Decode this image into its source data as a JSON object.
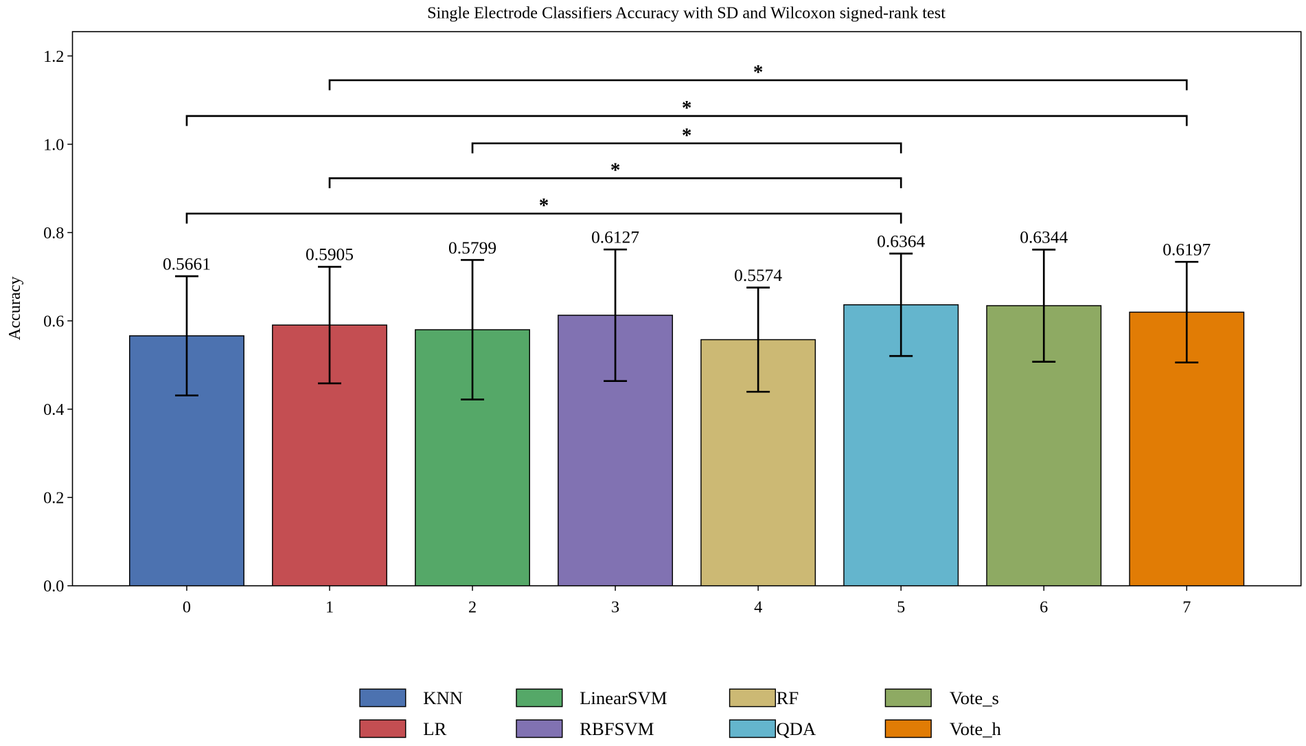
{
  "chart_data": {
    "type": "bar",
    "title": "Single Electrode Classifiers Accuracy with SD and Wilcoxon signed-rank test",
    "xlabel": "",
    "ylabel": "Accuracy",
    "categories": [
      "0",
      "1",
      "2",
      "3",
      "4",
      "5",
      "6",
      "7"
    ],
    "series_names": [
      "KNN",
      "LR",
      "LinearSVM",
      "RBFSVM",
      "RF",
      "QDA",
      "Vote_s",
      "Vote_h"
    ],
    "values": [
      0.5661,
      0.5905,
      0.5799,
      0.6127,
      0.5574,
      0.6364,
      0.6344,
      0.6197
    ],
    "value_labels": [
      "0.5661",
      "0.5905",
      "0.5799",
      "0.6127",
      "0.5574",
      "0.6364",
      "0.6344",
      "0.6197"
    ],
    "sd": [
      0.135,
      0.132,
      0.158,
      0.149,
      0.118,
      0.116,
      0.127,
      0.114
    ],
    "colors": [
      "#4c72b0",
      "#c44e52",
      "#55a868",
      "#8172b2",
      "#ccb974",
      "#64b5cd",
      "#8eaa63",
      "#e17c05"
    ],
    "ylim": [
      0,
      1.255
    ],
    "xlim": [
      -0.8,
      7.8
    ],
    "yticks": [
      0.0,
      0.2,
      0.4,
      0.6,
      0.8,
      1.0,
      1.2
    ],
    "ytick_labels": [
      "0.0",
      "0.2",
      "0.4",
      "0.6",
      "0.8",
      "1.0",
      "1.2"
    ],
    "grid": false,
    "significance": [
      {
        "from": 0,
        "to": 5,
        "y": 0.843,
        "label": "*"
      },
      {
        "from": 1,
        "to": 5,
        "y": 0.923,
        "label": "*"
      },
      {
        "from": 2,
        "to": 5,
        "y": 1.002,
        "label": "*"
      },
      {
        "from": 0,
        "to": 7,
        "y": 1.064,
        "label": "*"
      },
      {
        "from": 1,
        "to": 7,
        "y": 1.145,
        "label": "*"
      }
    ],
    "legend_position": "bottom-center"
  }
}
